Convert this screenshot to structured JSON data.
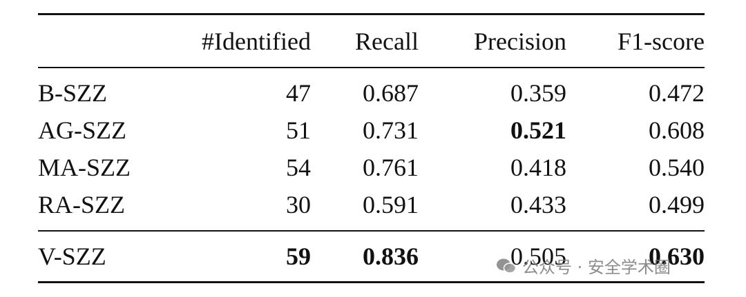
{
  "table": {
    "header": [
      "#Identified",
      "Recall",
      "Precision",
      "F1-score"
    ],
    "rows": [
      [
        "B-SZZ",
        "47",
        "0.687",
        "0.359",
        "0.472"
      ],
      [
        "AG-SZZ",
        "51",
        "0.731",
        "0.521",
        "0.608"
      ],
      [
        "MA-SZZ",
        "54",
        "0.761",
        "0.418",
        "0.540"
      ],
      [
        "RA-SZZ",
        "30",
        "0.591",
        "0.433",
        "0.499"
      ],
      [
        "V-SZZ",
        "59",
        "0.836",
        "0.505",
        "0.630"
      ]
    ]
  },
  "watermark": "公众号 · 安全学术圈"
}
